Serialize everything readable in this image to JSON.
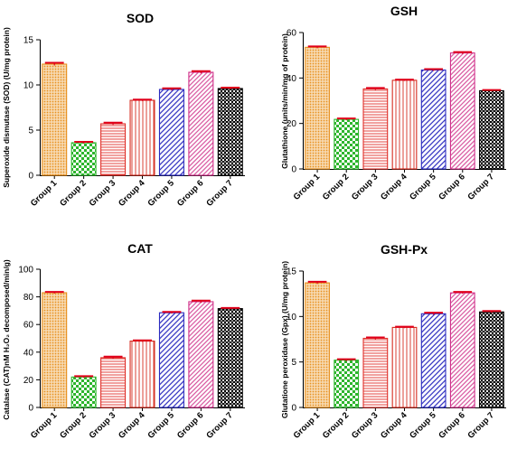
{
  "categories": [
    "Group 1",
    "Group 2",
    "Group 3",
    "Group 4",
    "Group 5",
    "Group 6",
    "Group 7"
  ],
  "colors": {
    "group1": "#E8901E",
    "group2": "#2DB52D",
    "group3": "#E0302A",
    "group4": "#D62B1E",
    "group5": "#2A2ABF",
    "group6": "#D0308A",
    "group7": "#000000",
    "error_bar": "#E0001B"
  },
  "chart_data": [
    {
      "type": "bar",
      "title": "SOD",
      "ylabel": "Superoxide dismutase (SOD) (U/mg protein)",
      "ylim": [
        0,
        15
      ],
      "yticks": [
        "0",
        "5",
        "10",
        "15"
      ],
      "categories": [
        "Group 1",
        "Group 2",
        "Group 3",
        "Group 4",
        "Group 5",
        "Group 6",
        "Group 7"
      ],
      "values": [
        12.3,
        3.6,
        5.7,
        8.3,
        9.5,
        11.4,
        9.6
      ],
      "errors": [
        0.15,
        0.1,
        0.12,
        0.08,
        0.12,
        0.12,
        0.1
      ]
    },
    {
      "type": "bar",
      "title": "GSH",
      "ylabel": "Glutathione (units/min/mg of protein)",
      "ylim": [
        0,
        60
      ],
      "yticks": [
        "0",
        "20",
        "40",
        "60"
      ],
      "categories": [
        "Group 1",
        "Group 2",
        "Group 3",
        "Group 4",
        "Group 5",
        "Group 6",
        "Group 7"
      ],
      "values": [
        53.5,
        21.8,
        35.2,
        39.0,
        43.5,
        51.0,
        34.4
      ],
      "errors": [
        0.4,
        0.4,
        0.4,
        0.3,
        0.4,
        0.4,
        0.3
      ]
    },
    {
      "type": "bar",
      "title": "CAT",
      "ylabel": "Catalase (CAT)nM H₂O₂ decomposed/min/g)",
      "ylim": [
        0,
        100
      ],
      "yticks": [
        "0",
        "20",
        "40",
        "60",
        "80",
        "100"
      ],
      "categories": [
        "Group 1",
        "Group 2",
        "Group 3",
        "Group 4",
        "Group 5",
        "Group 6",
        "Group 7"
      ],
      "values": [
        83.0,
        22.0,
        36.0,
        48.0,
        68.5,
        76.5,
        71.5
      ],
      "errors": [
        0.6,
        0.6,
        0.8,
        0.5,
        0.6,
        0.8,
        0.5
      ]
    },
    {
      "type": "bar",
      "title": "GSH-Px",
      "ylabel": "Glutatione peroxidase  (Gpx) (U/mg protein)",
      "ylim": [
        0,
        15
      ],
      "yticks": [
        "0",
        "5",
        "10",
        "15"
      ],
      "categories": [
        "Group 1",
        "Group 2",
        "Group 3",
        "Group 4",
        "Group 5",
        "Group 6",
        "Group 7"
      ],
      "values": [
        13.7,
        5.2,
        7.6,
        8.8,
        10.3,
        12.6,
        10.5
      ],
      "errors": [
        0.12,
        0.1,
        0.1,
        0.08,
        0.12,
        0.1,
        0.1
      ]
    }
  ]
}
